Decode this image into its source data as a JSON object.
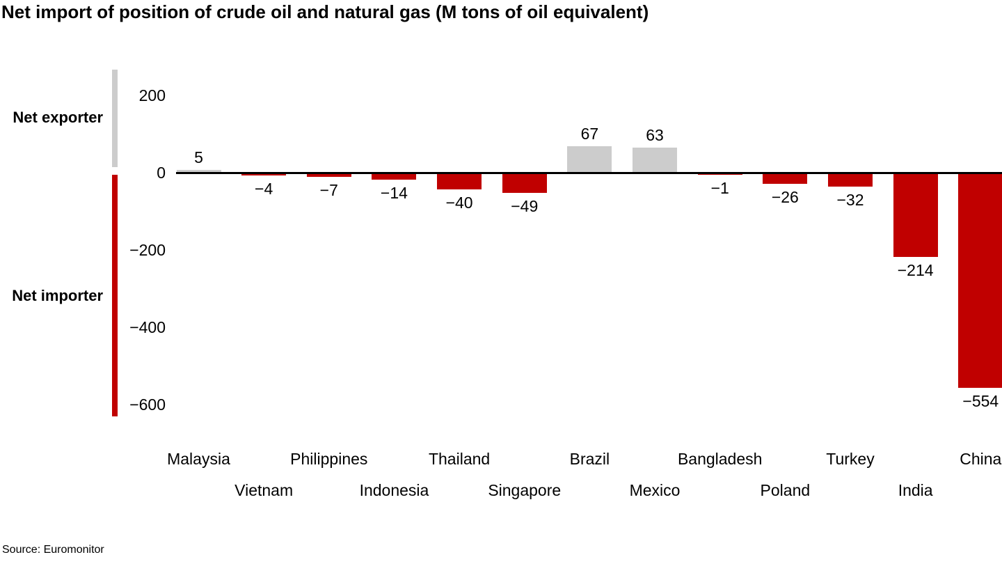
{
  "title": "Net import of position of crude oil and natural gas (M tons of oil equivalent)",
  "source": "Source: Euromonitor",
  "legend": {
    "exporter_label": "Net exporter",
    "importer_label": "Net importer"
  },
  "colors": {
    "exporter": "#cccccc",
    "importer": "#c00000",
    "axis": "#000000"
  },
  "axis": {
    "ticks": [
      {
        "label": "200",
        "value": 200
      },
      {
        "label": "0",
        "value": 0
      },
      {
        "label": "−200",
        "value": -200
      },
      {
        "label": "−400",
        "value": -400
      },
      {
        "label": "−600",
        "value": -600
      }
    ]
  },
  "chart_data": {
    "type": "bar",
    "title": "Net import of position of crude oil and natural gas (M tons of oil equivalent)",
    "xlabel": "",
    "ylabel": "",
    "ylim": [
      -600,
      200
    ],
    "grid": false,
    "legend_position": "left-strips",
    "categories": [
      "Malaysia",
      "Vietnam",
      "Philippines",
      "Indonesia",
      "Thailand",
      "Singapore",
      "Brazil",
      "Mexico",
      "Bangladesh",
      "Poland",
      "Turkey",
      "India",
      "China"
    ],
    "values": [
      5,
      -4,
      -7,
      -14,
      -40,
      -49,
      67,
      63,
      -1,
      -26,
      -32,
      -214,
      -554
    ],
    "value_labels": [
      "5",
      "−4",
      "−7",
      "−14",
      "−40",
      "−49",
      "67",
      "63",
      "−1",
      "−26",
      "−32",
      "−214",
      "−554"
    ],
    "series_note": "positive = net exporter (gray), negative = net importer (red)"
  }
}
